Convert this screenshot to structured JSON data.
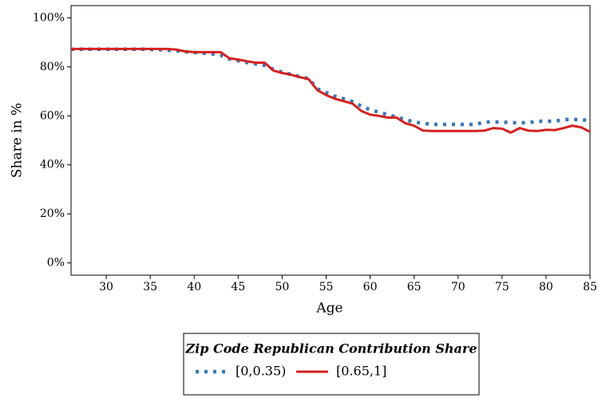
{
  "chart_data": {
    "type": "line",
    "x_label": "Age",
    "y_label": "Share in %",
    "x": [
      26,
      27,
      28,
      29,
      30,
      31,
      32,
      33,
      34,
      35,
      36,
      37,
      38,
      39,
      40,
      41,
      42,
      43,
      44,
      45,
      46,
      47,
      48,
      49,
      50,
      51,
      52,
      53,
      54,
      55,
      56,
      57,
      58,
      59,
      60,
      61,
      62,
      63,
      64,
      65,
      66,
      67,
      68,
      69,
      70,
      71,
      72,
      73,
      74,
      75,
      76,
      77,
      78,
      79,
      80,
      81,
      82,
      83,
      84,
      85
    ],
    "series": [
      {
        "name": "[0,0.35)",
        "color": "#3a78b5",
        "style": "dotted",
        "values": [
          87.2,
          87.2,
          87.2,
          87.2,
          87.2,
          87.2,
          87.2,
          87.2,
          87.2,
          87.1,
          87.0,
          86.8,
          86.5,
          86.2,
          85.9,
          85.6,
          85.3,
          84.8,
          83.2,
          82.5,
          81.8,
          81.2,
          80.6,
          79.0,
          77.8,
          76.9,
          76.0,
          75.2,
          71.0,
          69.5,
          68.0,
          67.0,
          65.8,
          64.0,
          62.5,
          61.5,
          60.5,
          59.5,
          58.5,
          57.5,
          57.0,
          56.5,
          56.5,
          56.5,
          56.5,
          56.5,
          56.5,
          57.5,
          57.5,
          57.5,
          57.2,
          57.2,
          57.2,
          57.8,
          57.8,
          57.8,
          58.5,
          58.5,
          58.5,
          58.0
        ]
      },
      {
        "name": "[0.65,1]",
        "color": "#d42020",
        "style": "solid",
        "values": [
          87.3,
          87.3,
          87.3,
          87.3,
          87.3,
          87.3,
          87.3,
          87.3,
          87.3,
          87.3,
          87.3,
          87.3,
          87.0,
          86.3,
          86.0,
          86.0,
          86.0,
          86.0,
          83.5,
          83.0,
          82.3,
          81.7,
          81.7,
          78.5,
          77.5,
          76.8,
          75.8,
          75.0,
          70.5,
          68.5,
          67.0,
          66.0,
          65.0,
          62.0,
          60.5,
          60.0,
          59.3,
          59.3,
          57.0,
          56.0,
          54.0,
          53.8,
          53.8,
          53.8,
          53.8,
          53.8,
          53.8,
          54.0,
          55.0,
          54.8,
          53.2,
          55.0,
          54.0,
          53.8,
          54.3,
          54.2,
          55.0,
          56.0,
          55.3,
          53.5
        ]
      }
    ],
    "xlim": [
      26,
      85
    ],
    "ylim": [
      -5,
      105
    ],
    "xticks": [
      30,
      35,
      40,
      45,
      50,
      55,
      60,
      65,
      70,
      75,
      80,
      85
    ],
    "yticks": [
      {
        "value": 0,
        "label": "0%"
      },
      {
        "value": 20,
        "label": "20%"
      },
      {
        "value": 40,
        "label": "40%"
      },
      {
        "value": 60,
        "label": "60%"
      },
      {
        "value": 80,
        "label": "80%"
      },
      {
        "value": 100,
        "label": "100%"
      }
    ],
    "legend_title": "Zip Code Republican Contribution Share",
    "legend_position": "below"
  }
}
